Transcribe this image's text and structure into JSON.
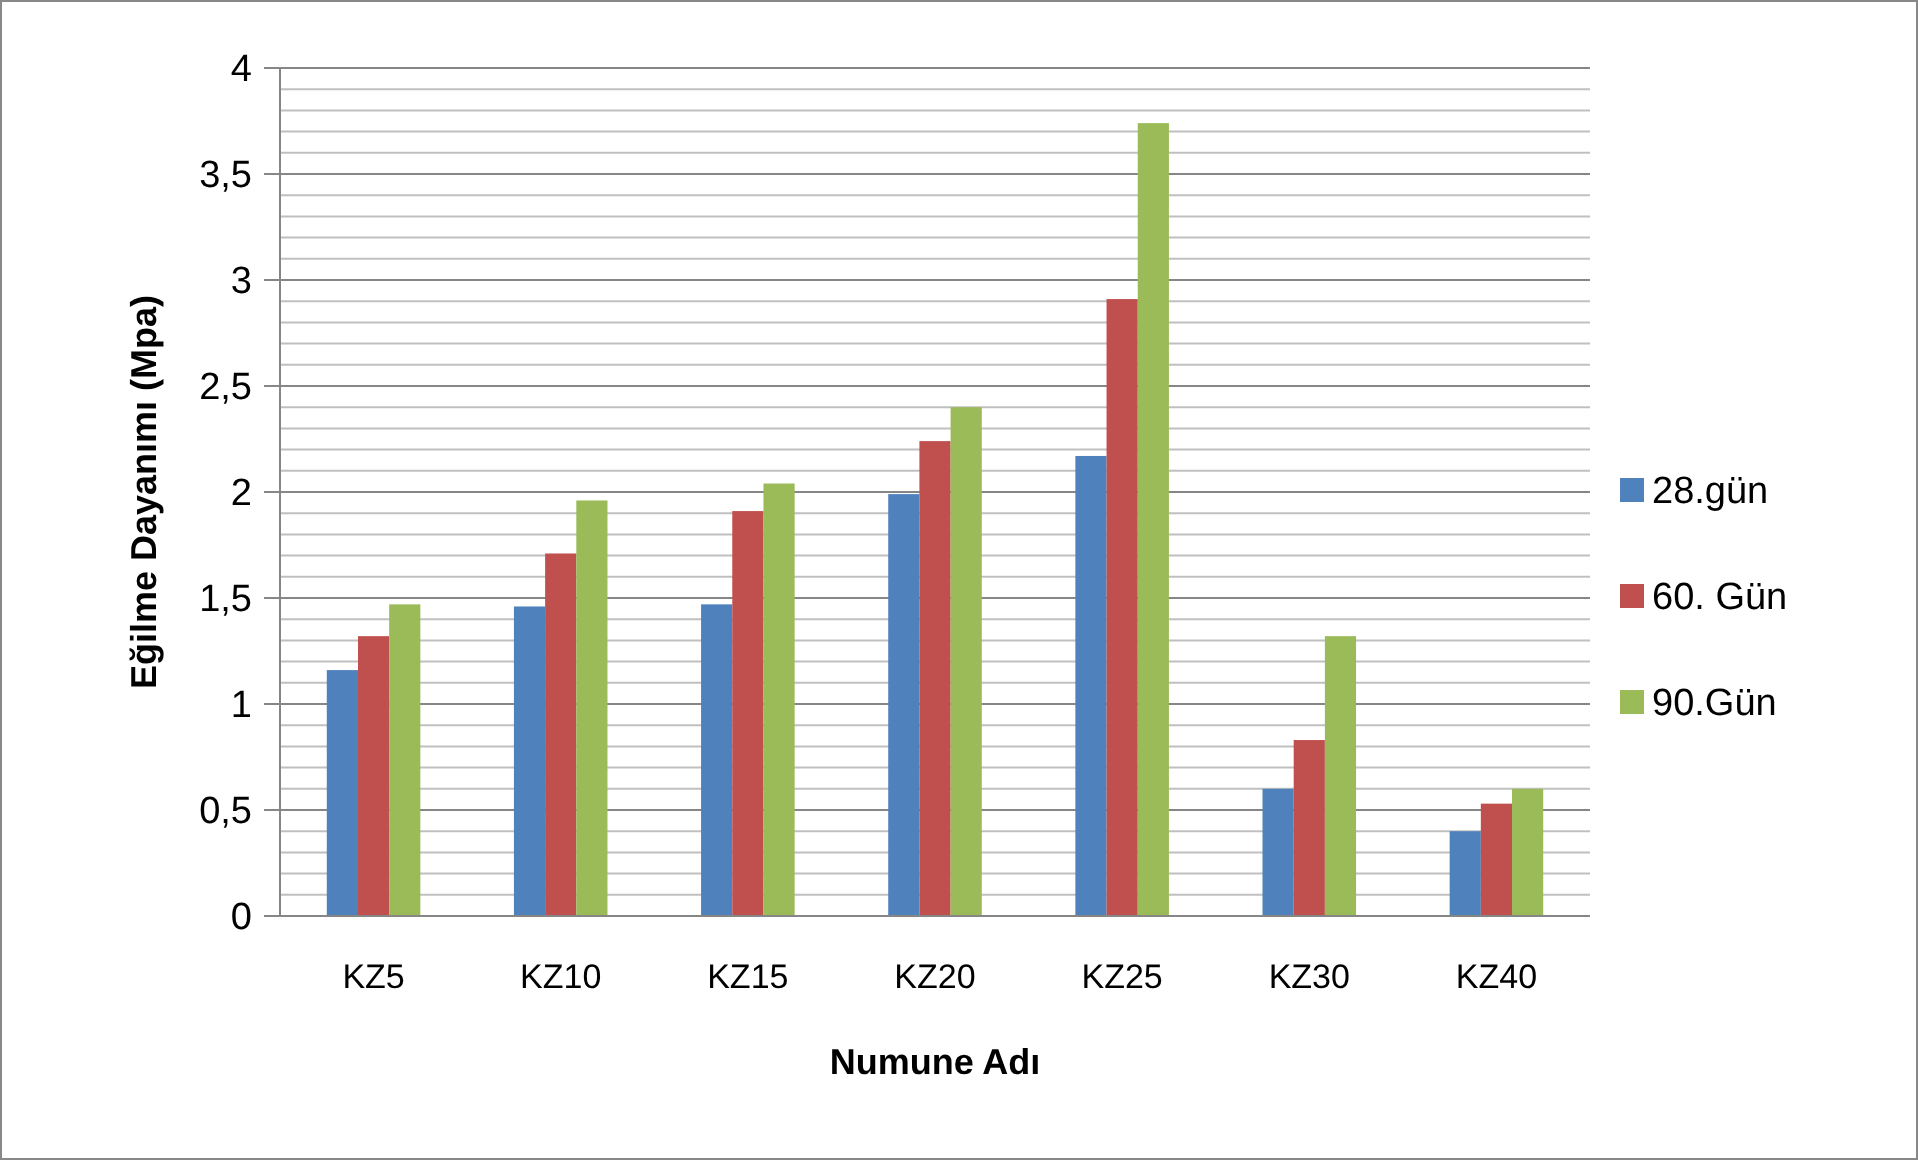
{
  "chart_data": {
    "type": "bar",
    "xlabel": "Numune Adı",
    "ylabel": "Eğilme Dayanımı (Mpa)",
    "categories": [
      "KZ5",
      "KZ10",
      "KZ15",
      "KZ20",
      "KZ25",
      "KZ30",
      "KZ40"
    ],
    "series": [
      {
        "name": "28.gün",
        "color": "#4f81bd",
        "values": [
          1.16,
          1.46,
          1.47,
          1.99,
          2.17,
          0.6,
          0.4
        ]
      },
      {
        "name": "60. Gün",
        "color": "#c0504d",
        "values": [
          1.32,
          1.71,
          1.91,
          2.24,
          2.91,
          0.83,
          0.53
        ]
      },
      {
        "name": "90.Gün",
        "color": "#9bbb59",
        "values": [
          1.47,
          1.96,
          2.04,
          2.4,
          3.74,
          1.32,
          0.6
        ]
      }
    ],
    "ylim": [
      0,
      4
    ],
    "yticks": [
      0,
      {
        "value": 0.1,
        "label": null
      },
      {
        "value": 0.2,
        "label": null
      },
      {
        "value": 0.3,
        "label": null
      },
      {
        "value": 0.4,
        "label": null
      },
      {
        "value": 0.5,
        "label": "0,5"
      },
      {
        "value": 0.6,
        "label": null
      },
      {
        "value": 0.7,
        "label": null
      },
      {
        "value": 0.8,
        "label": null
      },
      {
        "value": 0.9,
        "label": null
      },
      1,
      {
        "value": 1.1,
        "label": null
      },
      {
        "value": 1.2,
        "label": null
      },
      {
        "value": 1.3,
        "label": null
      },
      {
        "value": 1.4,
        "label": null
      },
      {
        "value": 1.5,
        "label": "1,5"
      },
      {
        "value": 1.6,
        "label": null
      },
      {
        "value": 1.7,
        "label": null
      },
      {
        "value": 1.8,
        "label": null
      },
      {
        "value": 1.9,
        "label": null
      },
      2,
      {
        "value": 2.1,
        "label": null
      },
      {
        "value": 2.2,
        "label": null
      },
      {
        "value": 2.3,
        "label": null
      },
      {
        "value": 2.4,
        "label": null
      },
      {
        "value": 2.5,
        "label": "2,5"
      },
      {
        "value": 2.6,
        "label": null
      },
      {
        "value": 2.7,
        "label": null
      },
      {
        "value": 2.8,
        "label": null
      },
      {
        "value": 2.9,
        "label": null
      },
      3,
      {
        "value": 3.1,
        "label": null
      },
      {
        "value": 3.2,
        "label": null
      },
      {
        "value": 3.3,
        "label": null
      },
      {
        "value": 3.4,
        "label": null
      },
      {
        "value": 3.5,
        "label": "3,5"
      },
      {
        "value": 3.6,
        "label": null
      },
      {
        "value": 3.7,
        "label": null
      },
      {
        "value": 3.8,
        "label": null
      },
      {
        "value": 3.9,
        "label": null
      },
      4
    ],
    "grid": "y",
    "legend": "right"
  }
}
